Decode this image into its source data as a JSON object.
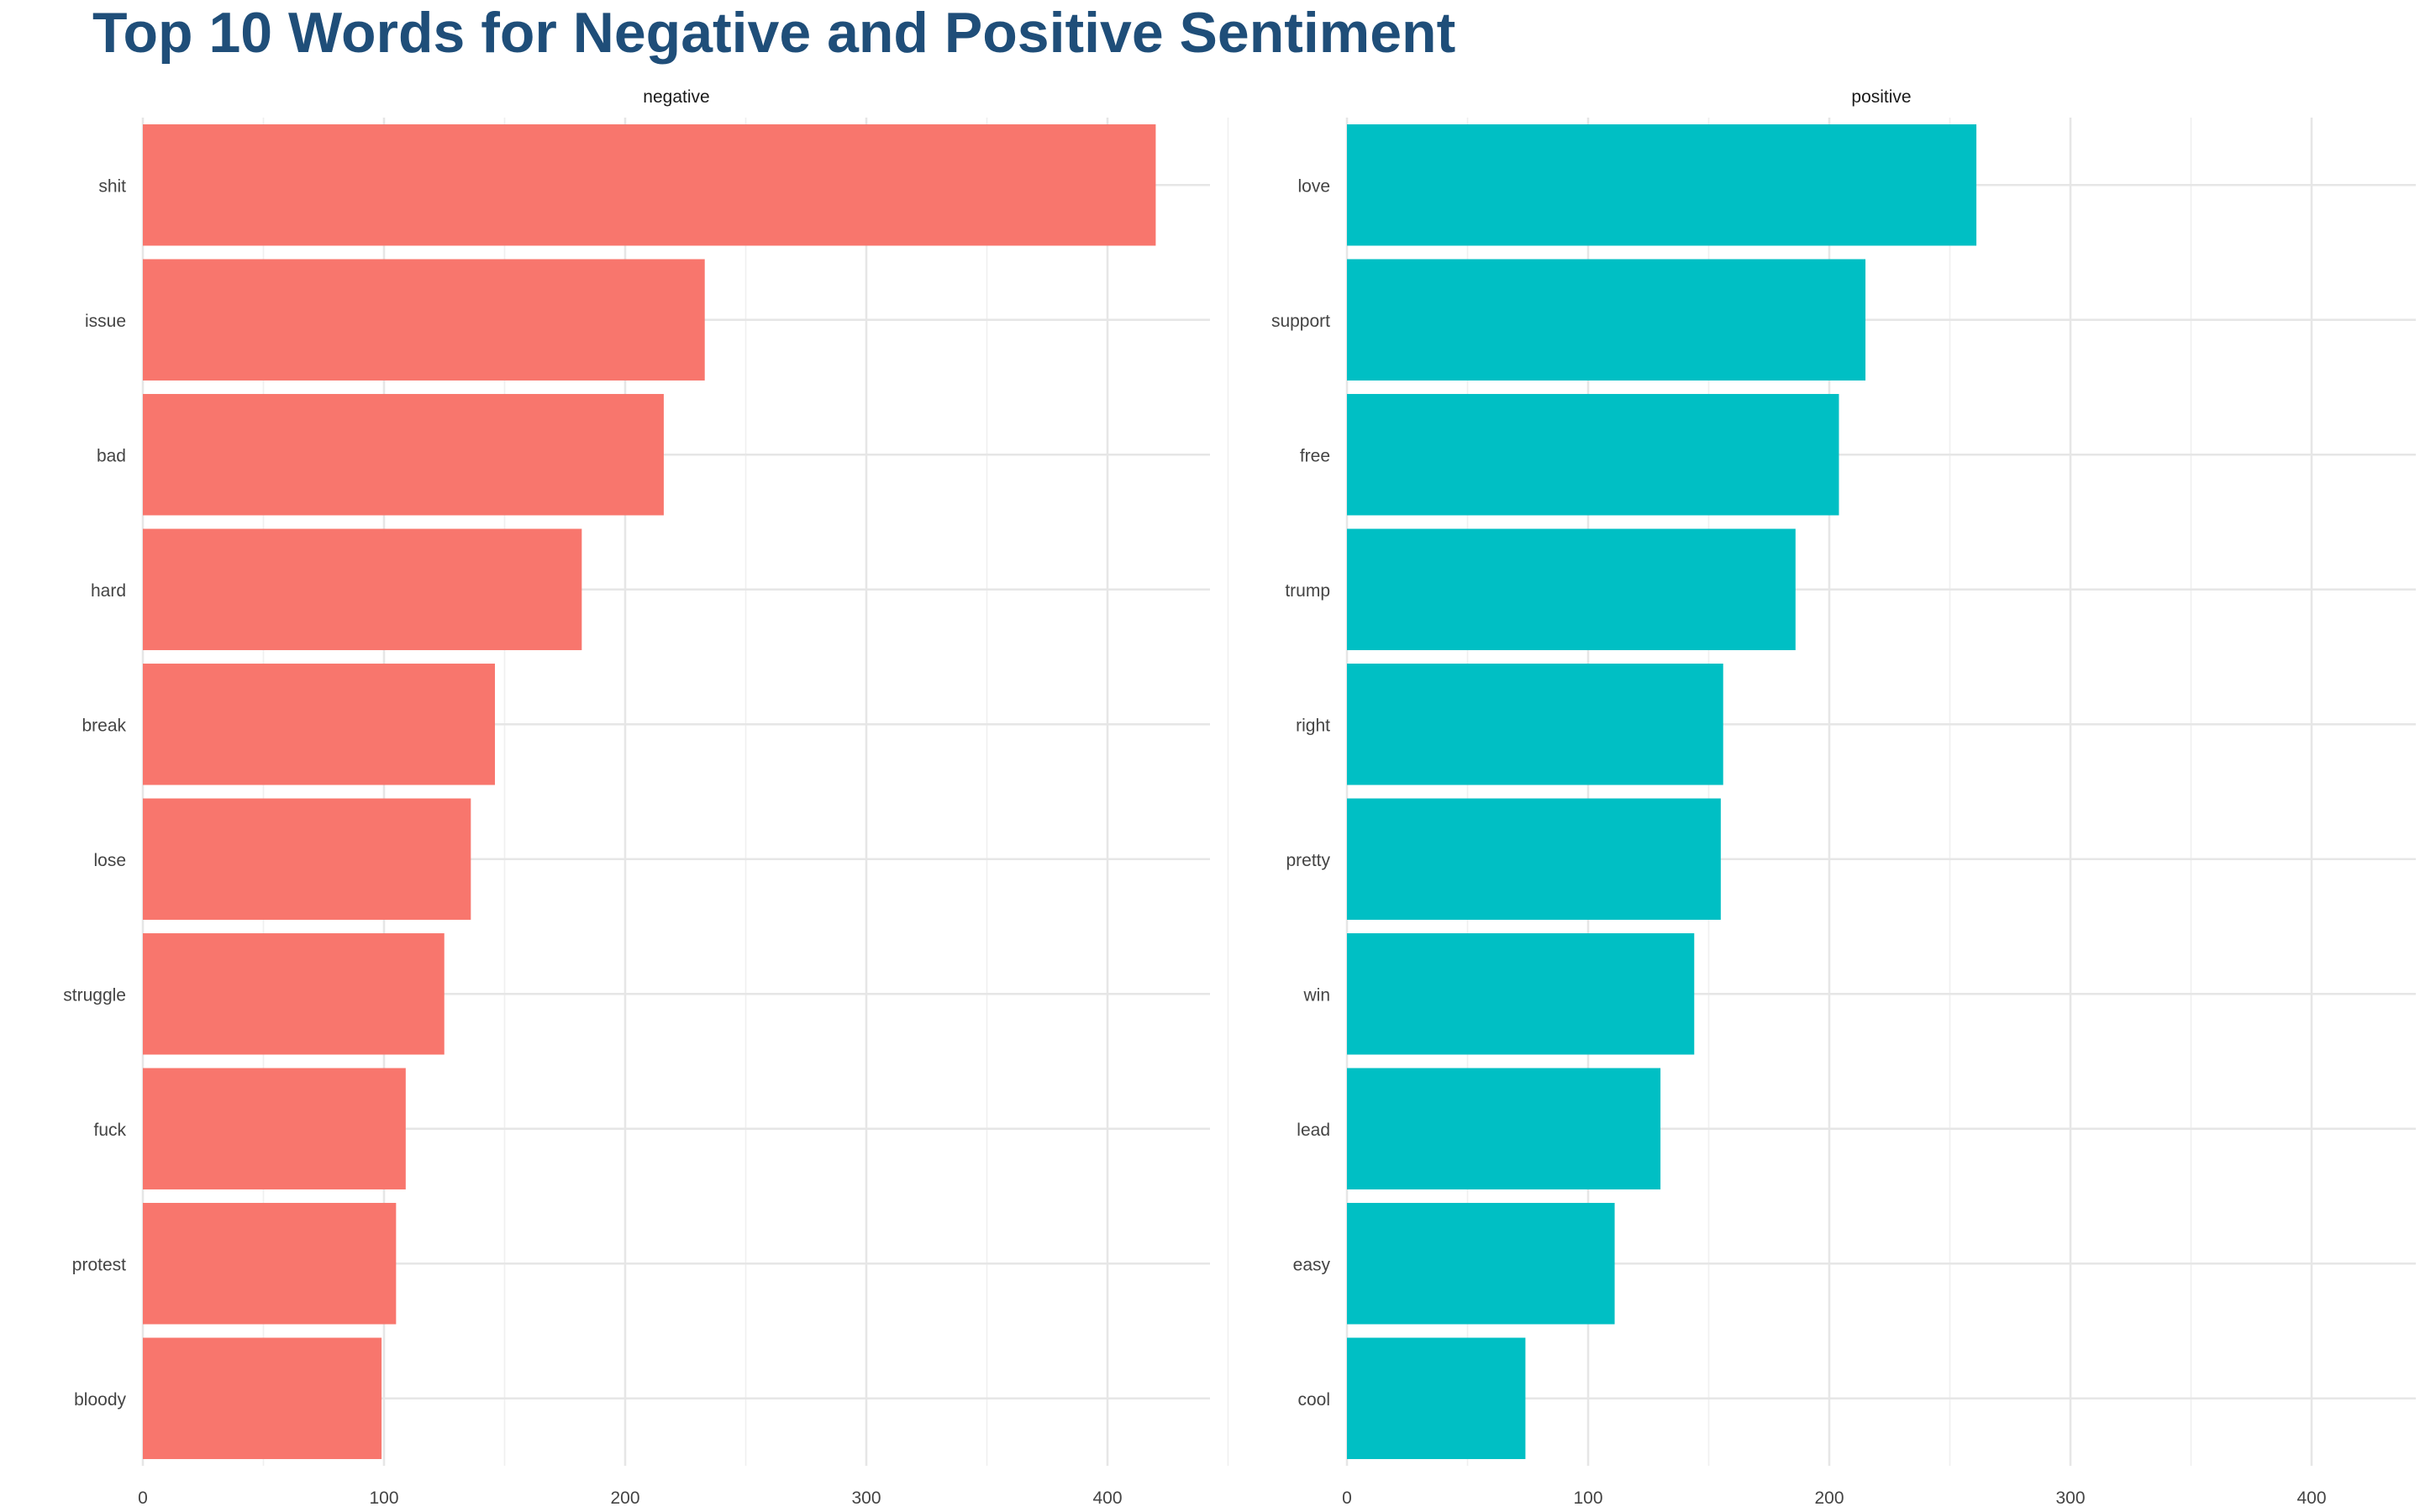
{
  "chart_data": {
    "type": "bar",
    "orientation": "horizontal",
    "title": "Top 10 Words for Negative and Positive Sentiment",
    "xlabel": "",
    "ylabel": "",
    "xlim": [
      0,
      450
    ],
    "x_ticks": [
      0,
      100,
      200,
      300,
      400
    ],
    "grid": true,
    "legend": "none",
    "facets": [
      {
        "name": "negative",
        "color": "#F8766D",
        "categories": [
          "shit",
          "issue",
          "bad",
          "hard",
          "break",
          "lose",
          "struggle",
          "fuck",
          "protest",
          "bloody"
        ],
        "values": [
          420,
          233,
          216,
          182,
          146,
          136,
          125,
          109,
          105,
          99
        ]
      },
      {
        "name": "positive",
        "color": "#00BFC4",
        "categories": [
          "love",
          "support",
          "free",
          "trump",
          "right",
          "pretty",
          "win",
          "lead",
          "easy",
          "cool"
        ],
        "values": [
          261,
          215,
          204,
          186,
          156,
          155,
          144,
          130,
          111,
          74
        ]
      }
    ]
  }
}
